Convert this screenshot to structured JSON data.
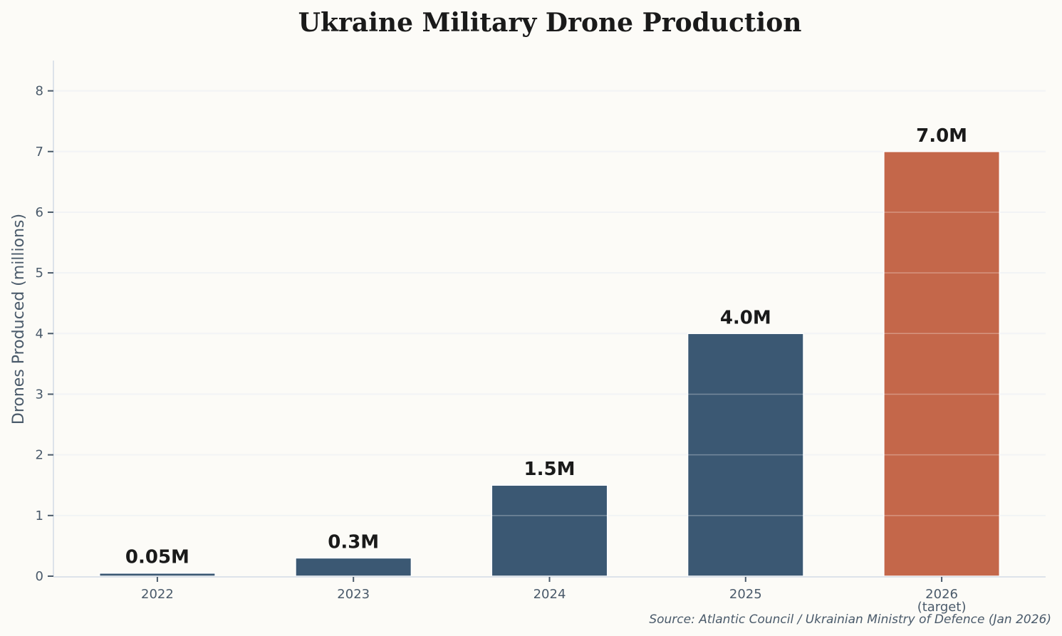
{
  "chart_data": {
    "type": "bar",
    "title": "Ukraine Military Drone Production",
    "xlabel": "",
    "ylabel": "Drones Produced (millions)",
    "categories": [
      "2022",
      "2023",
      "2024",
      "2025",
      "2026\n(target)"
    ],
    "values": [
      0.05,
      0.3,
      1.5,
      4.0,
      7.0
    ],
    "data_labels": [
      "0.05M",
      "0.3M",
      "1.5M",
      "4.0M",
      "7.0M"
    ],
    "bar_colors": [
      "#3b5873",
      "#3b5873",
      "#3b5873",
      "#3b5873",
      "#c4674a"
    ],
    "ylim": [
      0,
      8.5
    ],
    "yticks": [
      0,
      1,
      2,
      3,
      4,
      5,
      6,
      7,
      8
    ],
    "grid": "horizontal",
    "source": "Source: Atlantic Council / Ukrainian Ministry of Defence (Jan 2026)"
  }
}
